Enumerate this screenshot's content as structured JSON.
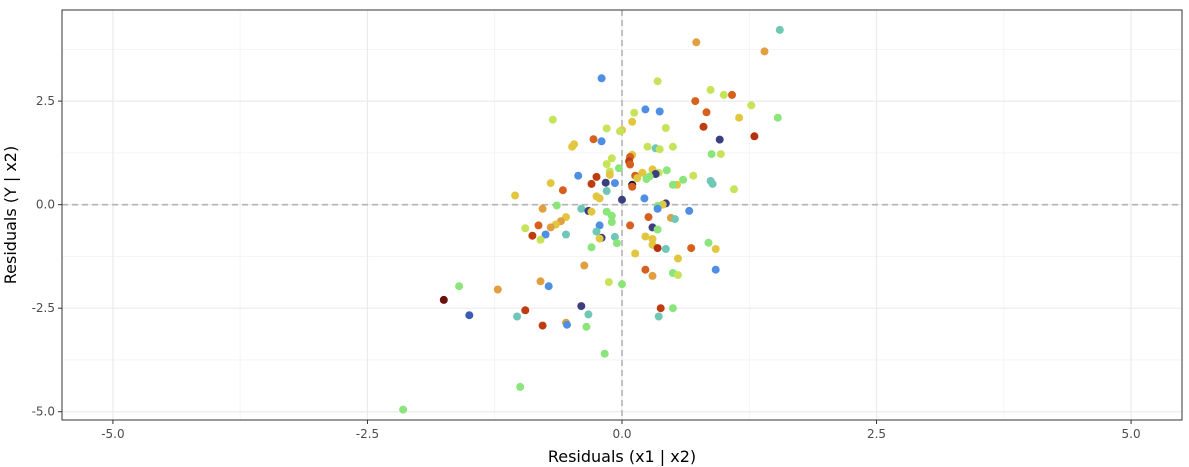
{
  "chart_data": {
    "type": "scatter",
    "title": "",
    "xlabel": "Residuals (x1  | x2)",
    "ylabel": "Residuals (Y  | x2)",
    "xlim": [
      -5.5,
      5.5
    ],
    "ylim": [
      -5.2,
      4.7
    ],
    "x_ticks": [
      -5.0,
      -2.5,
      0.0,
      2.5,
      5.0
    ],
    "x_tick_labels": [
      "-5.0",
      "-2.5",
      "0.0",
      "2.5",
      "5.0"
    ],
    "y_ticks": [
      -5.0,
      -2.5,
      0.0,
      2.5
    ],
    "y_tick_labels": [
      "-5.0",
      "-2.5",
      "0.0",
      "2.5"
    ],
    "reference_lines": {
      "x": 0,
      "y": 0,
      "style": "dashed",
      "color": "#b3b3b3"
    },
    "grid": true,
    "legend": "none",
    "points": [
      {
        "x": 1.55,
        "y": 4.22,
        "color": "#6fc7b5"
      },
      {
        "x": 0.73,
        "y": 3.92,
        "color": "#e0a040"
      },
      {
        "x": 1.4,
        "y": 3.7,
        "color": "#e0a040"
      },
      {
        "x": -0.2,
        "y": 3.05,
        "color": "#4f8fe3"
      },
      {
        "x": 0.35,
        "y": 2.98,
        "color": "#c6e35a"
      },
      {
        "x": 0.87,
        "y": 2.77,
        "color": "#c6e35a"
      },
      {
        "x": 1.0,
        "y": 2.65,
        "color": "#c6e35a"
      },
      {
        "x": 1.08,
        "y": 2.65,
        "color": "#d7601f"
      },
      {
        "x": 0.72,
        "y": 2.5,
        "color": "#d7601f"
      },
      {
        "x": 1.27,
        "y": 2.4,
        "color": "#c6e35a"
      },
      {
        "x": 0.23,
        "y": 2.3,
        "color": "#4f8fe3"
      },
      {
        "x": 0.12,
        "y": 2.22,
        "color": "#c6e35a"
      },
      {
        "x": 0.37,
        "y": 2.25,
        "color": "#4f8fe3"
      },
      {
        "x": 0.83,
        "y": 2.23,
        "color": "#d7601f"
      },
      {
        "x": 1.15,
        "y": 2.1,
        "color": "#e3c63f"
      },
      {
        "x": 1.53,
        "y": 2.1,
        "color": "#8ae57a"
      },
      {
        "x": -0.68,
        "y": 2.05,
        "color": "#c6e35a"
      },
      {
        "x": 0.1,
        "y": 2.0,
        "color": "#e3c63f"
      },
      {
        "x": 0.8,
        "y": 1.88,
        "color": "#bf3c10"
      },
      {
        "x": 0.43,
        "y": 1.85,
        "color": "#c6e35a"
      },
      {
        "x": -0.15,
        "y": 1.84,
        "color": "#c6e35a"
      },
      {
        "x": 0.0,
        "y": 1.8,
        "color": "#e3c63f"
      },
      {
        "x": -0.02,
        "y": 1.77,
        "color": "#c6e35a"
      },
      {
        "x": 1.3,
        "y": 1.65,
        "color": "#b5300f"
      },
      {
        "x": -0.28,
        "y": 1.58,
        "color": "#d7601f"
      },
      {
        "x": 0.96,
        "y": 1.57,
        "color": "#3b3f80"
      },
      {
        "x": -0.2,
        "y": 1.53,
        "color": "#4f8fe3"
      },
      {
        "x": -0.47,
        "y": 1.46,
        "color": "#e3c63f"
      },
      {
        "x": -0.49,
        "y": 1.4,
        "color": "#e3c63f"
      },
      {
        "x": 0.25,
        "y": 1.4,
        "color": "#c6e35a"
      },
      {
        "x": 0.5,
        "y": 1.4,
        "color": "#c6e35a"
      },
      {
        "x": 0.33,
        "y": 1.36,
        "color": "#6fc7b5"
      },
      {
        "x": 0.37,
        "y": 1.34,
        "color": "#c6e35a"
      },
      {
        "x": 0.88,
        "y": 1.22,
        "color": "#8ae57a"
      },
      {
        "x": 0.97,
        "y": 1.22,
        "color": "#c6e35a"
      },
      {
        "x": 0.1,
        "y": 1.2,
        "color": "#e3c63f"
      },
      {
        "x": 0.08,
        "y": 1.15,
        "color": "#d7601f"
      },
      {
        "x": -0.1,
        "y": 1.12,
        "color": "#c6e35a"
      },
      {
        "x": 0.07,
        "y": 1.05,
        "color": "#bf3c10"
      },
      {
        "x": -0.15,
        "y": 0.98,
        "color": "#c6e35a"
      },
      {
        "x": 0.08,
        "y": 0.97,
        "color": "#d7601f"
      },
      {
        "x": -0.03,
        "y": 0.88,
        "color": "#8ae57a"
      },
      {
        "x": 0.3,
        "y": 0.85,
        "color": "#e3c63f"
      },
      {
        "x": 0.44,
        "y": 0.83,
        "color": "#8ae57a"
      },
      {
        "x": -0.12,
        "y": 0.8,
        "color": "#c6e35a"
      },
      {
        "x": 0.2,
        "y": 0.77,
        "color": "#e3c63f"
      },
      {
        "x": 0.36,
        "y": 0.77,
        "color": "#c6e35a"
      },
      {
        "x": 0.33,
        "y": 0.74,
        "color": "#3b3f80"
      },
      {
        "x": -0.12,
        "y": 0.72,
        "color": "#e3c63f"
      },
      {
        "x": 0.13,
        "y": 0.7,
        "color": "#d7601f"
      },
      {
        "x": -0.43,
        "y": 0.7,
        "color": "#4f8fe3"
      },
      {
        "x": 0.7,
        "y": 0.7,
        "color": "#c6e35a"
      },
      {
        "x": 0.27,
        "y": 0.68,
        "color": "#8ae57a"
      },
      {
        "x": -0.25,
        "y": 0.67,
        "color": "#bf3c10"
      },
      {
        "x": 0.15,
        "y": 0.64,
        "color": "#e3c63f"
      },
      {
        "x": 0.24,
        "y": 0.62,
        "color": "#8ae57a"
      },
      {
        "x": 0.6,
        "y": 0.6,
        "color": "#8ae57a"
      },
      {
        "x": 0.87,
        "y": 0.57,
        "color": "#6fc7b5"
      },
      {
        "x": 0.89,
        "y": 0.5,
        "color": "#6fc7b5"
      },
      {
        "x": -0.16,
        "y": 0.53,
        "color": "#3b3f80"
      },
      {
        "x": -0.07,
        "y": 0.52,
        "color": "#4f8fe3"
      },
      {
        "x": -0.3,
        "y": 0.5,
        "color": "#bf3c10"
      },
      {
        "x": 0.1,
        "y": 0.48,
        "color": "#1a1a2e"
      },
      {
        "x": -0.7,
        "y": 0.52,
        "color": "#e3c63f"
      },
      {
        "x": 0.54,
        "y": 0.48,
        "color": "#e3c63f"
      },
      {
        "x": 0.5,
        "y": 0.48,
        "color": "#8ae57a"
      },
      {
        "x": 0.1,
        "y": 0.43,
        "color": "#d7601f"
      },
      {
        "x": -0.58,
        "y": 0.35,
        "color": "#d7601f"
      },
      {
        "x": -0.15,
        "y": 0.33,
        "color": "#6fc7b5"
      },
      {
        "x": 1.1,
        "y": 0.37,
        "color": "#c6e35a"
      },
      {
        "x": -1.05,
        "y": 0.22,
        "color": "#e3c63f"
      },
      {
        "x": -0.25,
        "y": 0.2,
        "color": "#e3c63f"
      },
      {
        "x": 0.22,
        "y": 0.15,
        "color": "#4f8fe3"
      },
      {
        "x": 0.0,
        "y": 0.12,
        "color": "#3b3f80"
      },
      {
        "x": -0.22,
        "y": 0.15,
        "color": "#e3c63f"
      },
      {
        "x": 0.43,
        "y": 0.03,
        "color": "#3b3f80"
      },
      {
        "x": 0.4,
        "y": 0.0,
        "color": "#e3c63f"
      },
      {
        "x": -0.64,
        "y": -0.02,
        "color": "#8ae57a"
      },
      {
        "x": 0.35,
        "y": -0.03,
        "color": "#8ae57a"
      },
      {
        "x": 0.35,
        "y": -0.1,
        "color": "#4f8fe3"
      },
      {
        "x": -0.4,
        "y": -0.1,
        "color": "#6fc7b5"
      },
      {
        "x": -0.78,
        "y": -0.1,
        "color": "#e0a040"
      },
      {
        "x": 0.66,
        "y": -0.15,
        "color": "#4f8fe3"
      },
      {
        "x": -0.33,
        "y": -0.15,
        "color": "#3b3f80"
      },
      {
        "x": -0.3,
        "y": -0.17,
        "color": "#e3c63f"
      },
      {
        "x": -0.15,
        "y": -0.17,
        "color": "#8ae57a"
      },
      {
        "x": -0.1,
        "y": -0.27,
        "color": "#8ae57a"
      },
      {
        "x": 0.26,
        "y": -0.3,
        "color": "#d7601f"
      },
      {
        "x": -0.55,
        "y": -0.3,
        "color": "#e3c63f"
      },
      {
        "x": 0.48,
        "y": -0.32,
        "color": "#e0a040"
      },
      {
        "x": 0.52,
        "y": -0.35,
        "color": "#6fc7b5"
      },
      {
        "x": -0.6,
        "y": -0.4,
        "color": "#e0a040"
      },
      {
        "x": -0.1,
        "y": -0.42,
        "color": "#8ae57a"
      },
      {
        "x": -0.65,
        "y": -0.48,
        "color": "#e3c63f"
      },
      {
        "x": -0.22,
        "y": -0.5,
        "color": "#4f8fe3"
      },
      {
        "x": 0.08,
        "y": -0.5,
        "color": "#d7601f"
      },
      {
        "x": -0.82,
        "y": -0.5,
        "color": "#d7601f"
      },
      {
        "x": 0.3,
        "y": -0.55,
        "color": "#3b3f80"
      },
      {
        "x": -0.7,
        "y": -0.55,
        "color": "#e0a040"
      },
      {
        "x": -0.95,
        "y": -0.57,
        "color": "#c6e35a"
      },
      {
        "x": 0.35,
        "y": -0.6,
        "color": "#8ae57a"
      },
      {
        "x": -0.25,
        "y": -0.65,
        "color": "#6fc7b5"
      },
      {
        "x": -0.55,
        "y": -0.72,
        "color": "#6fc7b5"
      },
      {
        "x": -0.75,
        "y": -0.72,
        "color": "#4f8fe3"
      },
      {
        "x": -0.88,
        "y": -0.75,
        "color": "#bf3c10"
      },
      {
        "x": 0.23,
        "y": -0.77,
        "color": "#e3c63f"
      },
      {
        "x": -0.07,
        "y": -0.78,
        "color": "#6fc7b5"
      },
      {
        "x": -0.2,
        "y": -0.8,
        "color": "#3b3f80"
      },
      {
        "x": -0.22,
        "y": -0.82,
        "color": "#e3c63f"
      },
      {
        "x": 0.3,
        "y": -0.83,
        "color": "#e3c63f"
      },
      {
        "x": -0.8,
        "y": -0.85,
        "color": "#c6e35a"
      },
      {
        "x": 0.85,
        "y": -0.92,
        "color": "#8ae57a"
      },
      {
        "x": -0.05,
        "y": -0.93,
        "color": "#8ae57a"
      },
      {
        "x": 0.3,
        "y": -0.97,
        "color": "#e3c63f"
      },
      {
        "x": -0.3,
        "y": -1.03,
        "color": "#8ae57a"
      },
      {
        "x": 0.35,
        "y": -1.05,
        "color": "#b5300f"
      },
      {
        "x": 0.68,
        "y": -1.05,
        "color": "#d7601f"
      },
      {
        "x": 0.43,
        "y": -1.07,
        "color": "#6fc7b5"
      },
      {
        "x": 0.92,
        "y": -1.07,
        "color": "#e3c63f"
      },
      {
        "x": 0.13,
        "y": -1.18,
        "color": "#e3c63f"
      },
      {
        "x": 0.55,
        "y": -1.3,
        "color": "#e3c63f"
      },
      {
        "x": -0.37,
        "y": -1.47,
        "color": "#e0a040"
      },
      {
        "x": 0.23,
        "y": -1.57,
        "color": "#d7601f"
      },
      {
        "x": 0.92,
        "y": -1.57,
        "color": "#4f8fe3"
      },
      {
        "x": 0.5,
        "y": -1.65,
        "color": "#8ae57a"
      },
      {
        "x": 0.55,
        "y": -1.7,
        "color": "#c6e35a"
      },
      {
        "x": 0.3,
        "y": -1.72,
        "color": "#e0a040"
      },
      {
        "x": -0.8,
        "y": -1.85,
        "color": "#e0a040"
      },
      {
        "x": -0.13,
        "y": -1.87,
        "color": "#c6e35a"
      },
      {
        "x": 0.0,
        "y": -1.92,
        "color": "#8ae57a"
      },
      {
        "x": -0.72,
        "y": -1.97,
        "color": "#4f8fe3"
      },
      {
        "x": -1.6,
        "y": -1.97,
        "color": "#8ae57a"
      },
      {
        "x": -1.22,
        "y": -2.05,
        "color": "#e0a040"
      },
      {
        "x": -1.75,
        "y": -2.3,
        "color": "#6b0f0f"
      },
      {
        "x": -0.4,
        "y": -2.45,
        "color": "#3b3f80"
      },
      {
        "x": 0.5,
        "y": -2.5,
        "color": "#8ae57a"
      },
      {
        "x": 0.38,
        "y": -2.5,
        "color": "#bf3c10"
      },
      {
        "x": -0.95,
        "y": -2.55,
        "color": "#bf3c10"
      },
      {
        "x": -0.33,
        "y": -2.65,
        "color": "#6fc7b5"
      },
      {
        "x": -1.5,
        "y": -2.67,
        "color": "#3b5bb5"
      },
      {
        "x": -1.03,
        "y": -2.7,
        "color": "#6fc7b5"
      },
      {
        "x": 0.36,
        "y": -2.7,
        "color": "#6fc7b5"
      },
      {
        "x": -0.55,
        "y": -2.85,
        "color": "#e0a040"
      },
      {
        "x": -0.54,
        "y": -2.9,
        "color": "#4f8fe3"
      },
      {
        "x": -0.78,
        "y": -2.92,
        "color": "#bf3c10"
      },
      {
        "x": -0.35,
        "y": -2.95,
        "color": "#8ae57a"
      },
      {
        "x": -0.17,
        "y": -3.6,
        "color": "#8ae57a"
      },
      {
        "x": -1.0,
        "y": -4.4,
        "color": "#8ae57a"
      },
      {
        "x": -2.15,
        "y": -4.95,
        "color": "#8ae57a"
      }
    ]
  }
}
